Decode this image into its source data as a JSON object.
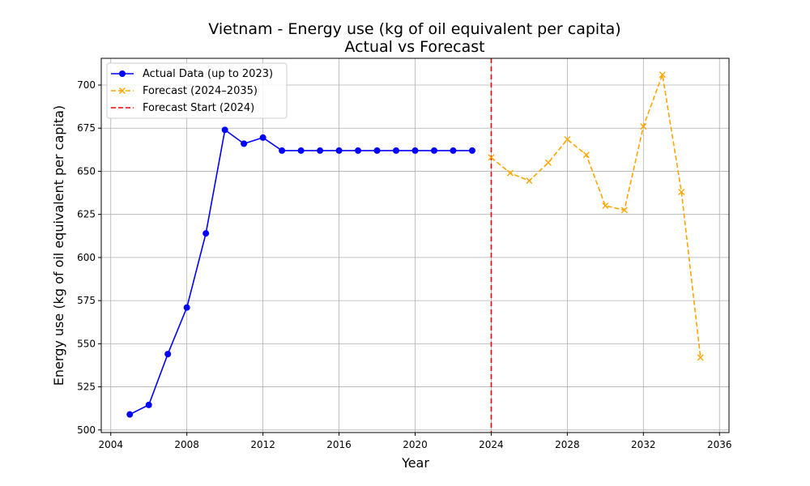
{
  "chart_data": {
    "type": "line",
    "title": "Vietnam - Energy use (kg of oil equivalent per capita)",
    "subtitle": "Actual vs Forecast",
    "xlabel": "Year",
    "ylabel": "Energy use (kg of oil equivalent per capita)",
    "xlim": [
      2003.5,
      2036.5
    ],
    "ylim": [
      498.5,
      715.5
    ],
    "xticks": [
      2004,
      2008,
      2012,
      2016,
      2020,
      2024,
      2028,
      2032,
      2036
    ],
    "yticks": [
      500,
      525,
      550,
      575,
      600,
      625,
      650,
      675,
      700
    ],
    "grid": true,
    "legend_position": "top-left",
    "series": [
      {
        "name": "Actual Data (up to 2023)",
        "color": "#0000ff",
        "line_style": "solid",
        "marker": "circle",
        "x": [
          2005,
          2006,
          2007,
          2008,
          2009,
          2010,
          2011,
          2012,
          2013,
          2014,
          2015,
          2016,
          2017,
          2018,
          2019,
          2020,
          2021,
          2022,
          2023
        ],
        "values": [
          509,
          514.5,
          544,
          571,
          614,
          674,
          666,
          669.5,
          662,
          662,
          662,
          662,
          662,
          662,
          662,
          662,
          662,
          662,
          662
        ]
      },
      {
        "name": "Forecast (2024–2035)",
        "color": "#ffa500",
        "line_style": "dashed",
        "marker": "x",
        "x": [
          2024,
          2025,
          2026,
          2027,
          2028,
          2029,
          2030,
          2031,
          2032,
          2033,
          2034,
          2035
        ],
        "values": [
          658,
          649,
          644.5,
          655,
          668.5,
          659.5,
          630,
          627.5,
          676,
          706,
          638,
          542
        ]
      }
    ],
    "reference_lines": [
      {
        "name": "Forecast Start (2024)",
        "x": 2024,
        "color": "#ff0000",
        "line_style": "dashed"
      }
    ]
  }
}
